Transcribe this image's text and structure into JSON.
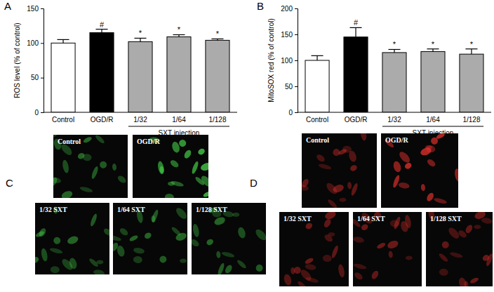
{
  "chart_data": [
    {
      "type": "bar",
      "panel": "A",
      "y_label": "ROS level (% of control)",
      "categories": [
        "Control",
        "OGD/R",
        "1/32",
        "1/64",
        "1/128"
      ],
      "values": [
        100,
        115,
        102,
        109,
        104
      ],
      "errors": [
        5,
        5,
        5,
        3,
        2
      ],
      "significance": [
        null,
        "#",
        "*",
        "*",
        "*"
      ],
      "colors": [
        "#ffffff",
        "#000000",
        "#ababab",
        "#ababab",
        "#ababab"
      ],
      "x_group": {
        "label": "SXT injection",
        "categories": [
          "1/32",
          "1/64",
          "1/128"
        ]
      },
      "ylim": [
        0,
        150
      ],
      "yticks": [
        0,
        50,
        100,
        150
      ]
    },
    {
      "type": "bar",
      "panel": "B",
      "y_label": "MitoSOX red (% of control)",
      "categories": [
        "Control",
        "OGD/R",
        "1/32",
        "1/64",
        "1/128"
      ],
      "values": [
        100,
        145,
        115,
        117,
        112
      ],
      "errors": [
        9,
        18,
        6,
        5,
        10
      ],
      "significance": [
        null,
        "#",
        "*",
        "*",
        "*"
      ],
      "colors": [
        "#ffffff",
        "#000000",
        "#ababab",
        "#ababab",
        "#ababab"
      ],
      "x_group": {
        "label": "SXT injection",
        "categories": [
          "1/32",
          "1/64",
          "1/128"
        ]
      },
      "ylim": [
        0,
        200
      ],
      "yticks": [
        0,
        50,
        100,
        150,
        200
      ]
    }
  ],
  "image_panels": [
    {
      "panel": "C",
      "color": "#46d24a",
      "images": [
        {
          "label": "Control"
        },
        {
          "label": "OGD/R"
        },
        {
          "label": "1/32 SXT"
        },
        {
          "label": "1/64 SXT"
        },
        {
          "label": "1/128 SXT"
        }
      ]
    },
    {
      "panel": "D",
      "color": "#e0302c",
      "images": [
        {
          "label": "Control"
        },
        {
          "label": "OGD/R"
        },
        {
          "label": "1/32 SXT"
        },
        {
          "label": "1/64 SXT"
        },
        {
          "label": "1/128 SXT"
        }
      ]
    }
  ]
}
